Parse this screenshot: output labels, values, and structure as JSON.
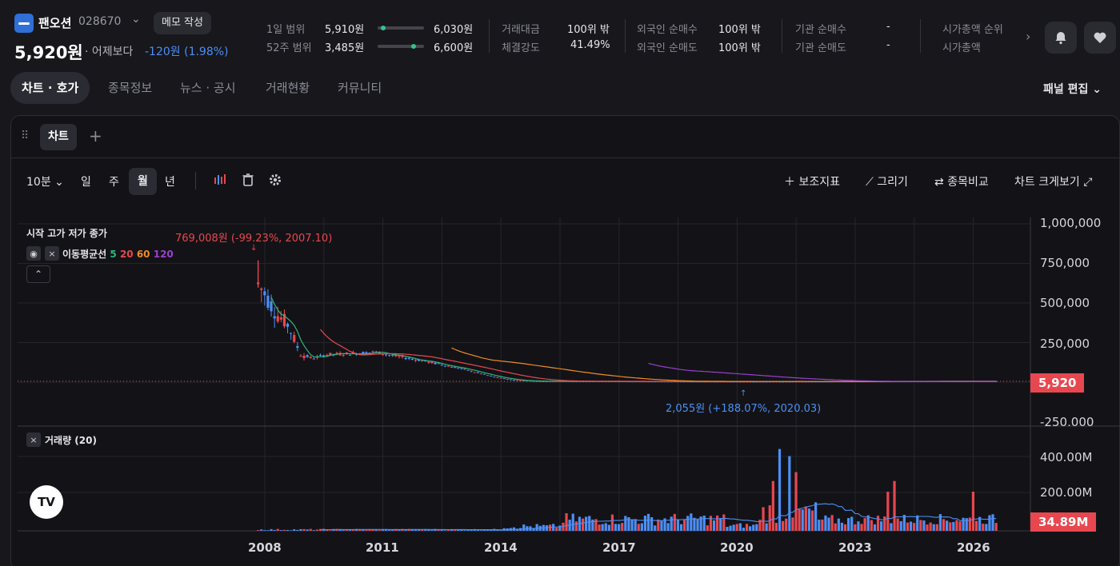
{
  "header": {
    "stock_name": "팬오션",
    "stock_code": "028670",
    "memo_label": "메모 작성",
    "price": "5,920원",
    "vs_label": "· 어제보다",
    "change": "-120원 (1.98%)",
    "stats": {
      "day_range_label": "1일 범위",
      "day_low": "5,910원",
      "day_high": "6,030원",
      "day_range_position": 0.08,
      "week52_label": "52주 범위",
      "week52_low": "3,485원",
      "week52_high": "6,600원",
      "week52_position": 0.78,
      "trade_value_label": "거래대금",
      "trade_value": "100위 밖",
      "strength_label": "체결강도",
      "strength": "41.49%",
      "foreign_buy_label": "외국인 순매수",
      "foreign_buy": "100위 밖",
      "foreign_sell_label": "외국인 순매도",
      "foreign_sell": "100위 밖",
      "inst_buy_label": "기관 순매수",
      "inst_buy": "-",
      "inst_sell_label": "기관 순매도",
      "inst_sell": "-",
      "mcap_rank_label": "시가총액 순위",
      "mcap_label": "시가총액"
    }
  },
  "tabs": [
    "차트 · 호가",
    "종목정보",
    "뉴스 · 공시",
    "거래현황",
    "커뮤니티"
  ],
  "panel_edit": "패널 편집",
  "panel": {
    "subtab": "차트",
    "add": "+"
  },
  "toolbar": {
    "interval": "10분",
    "day": "일",
    "week": "주",
    "month": "월",
    "year": "년",
    "indicator": "보조지표",
    "draw": "그리기",
    "compare": "종목비교",
    "expand": "차트 크게보기"
  },
  "legend": {
    "ohlc": "시작 고가 저가 종가",
    "ma_label": "이동평균선",
    "ma5": "5",
    "ma20": "20",
    "ma60": "60",
    "ma120": "120",
    "volume": "거래량 (20)"
  },
  "annotations": {
    "high": "769,008원 (-99.23%, 2007.10)",
    "low": "2,055원 (+188.07%, 2020.03)"
  },
  "price_axis": [
    "1,000,000",
    "750,000",
    "500,000",
    "250,000",
    "-250,000"
  ],
  "current_price_badge": "5,920",
  "volume_axis": [
    "400.00M",
    "200.00M"
  ],
  "current_volume_badge": "34.89M",
  "x_axis": [
    "2008",
    "2011",
    "2014",
    "2017",
    "2020",
    "2023",
    "2026"
  ],
  "colors": {
    "up": "#e8474f",
    "down": "#4d8ff5",
    "ma5": "#2fb67a",
    "ma20": "#e8474f",
    "ma60": "#f08a24",
    "ma120": "#9a3fd0"
  },
  "chart_data": {
    "type": "candlestick",
    "title": "",
    "xlabel": "",
    "ylabel": "",
    "ylim": [
      -250000,
      1000000
    ],
    "volume_ylim": [
      0,
      460
    ],
    "series": [
      {
        "name": "5",
        "values": []
      },
      {
        "name": "20",
        "values": []
      },
      {
        "name": "60",
        "values": []
      },
      {
        "name": "120",
        "values": []
      }
    ],
    "ohlc_approx": [
      {
        "x": "2007.10",
        "high": 769008
      },
      {
        "x": "2008.01",
        "close": 500000
      },
      {
        "x": "2008.06",
        "close": 380000
      },
      {
        "x": "2008.12",
        "close": 130000
      },
      {
        "x": "2009.06",
        "close": 170000
      },
      {
        "x": "2010.06",
        "close": 185000
      },
      {
        "x": "2011.06",
        "close": 150000
      },
      {
        "x": "2012.06",
        "close": 110000
      },
      {
        "x": "2013.06",
        "close": 50000
      },
      {
        "x": "2014.06",
        "close": 10000
      },
      {
        "x": "2020.03",
        "low": 2055
      },
      {
        "x": "2026.06",
        "close": 5920
      }
    ]
  }
}
